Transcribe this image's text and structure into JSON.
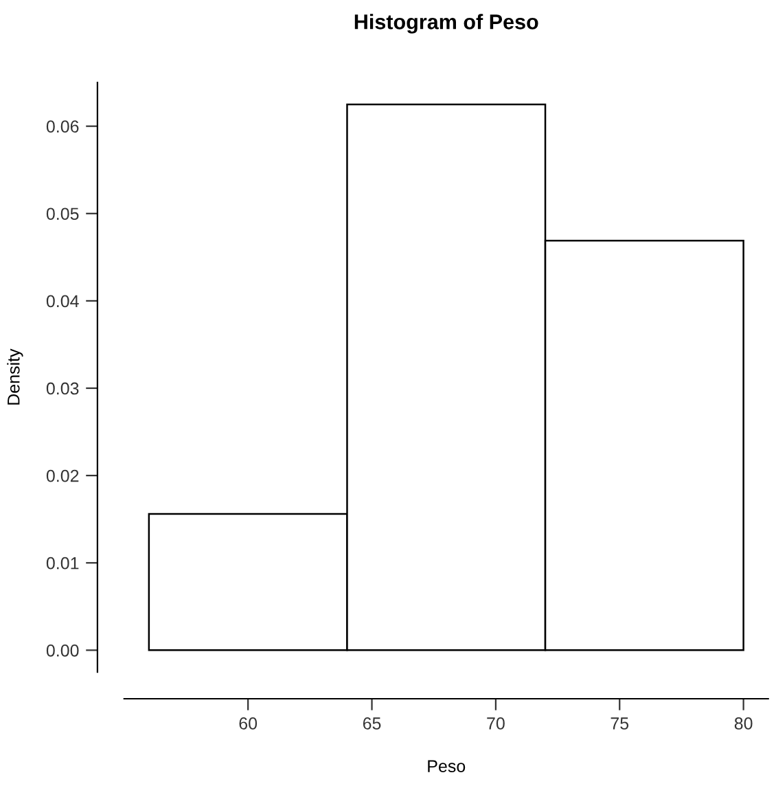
{
  "chart_data": {
    "type": "histogram",
    "title": "Histogram of Peso",
    "xlabel": "Peso",
    "ylabel": "Density",
    "bins": [
      56,
      64,
      72,
      80
    ],
    "values": [
      0.0156,
      0.0625,
      0.0469
    ],
    "color": "#ffffff",
    "xlim": [
      55,
      81
    ],
    "ylim": [
      -0.0025,
      0.065
    ],
    "xticks": [
      60,
      65,
      70,
      75,
      80
    ],
    "yticks": [
      {
        "value": 0,
        "label": "0.00"
      },
      {
        "value": 0.01,
        "label": "0.01"
      },
      {
        "value": 0.02,
        "label": "0.02"
      },
      {
        "value": 0.03,
        "label": "0.03"
      },
      {
        "value": 0.04,
        "label": "0.04"
      },
      {
        "value": 0.05,
        "label": "0.05"
      },
      {
        "value": 0.06,
        "label": "0.06"
      }
    ],
    "grid": false
  }
}
